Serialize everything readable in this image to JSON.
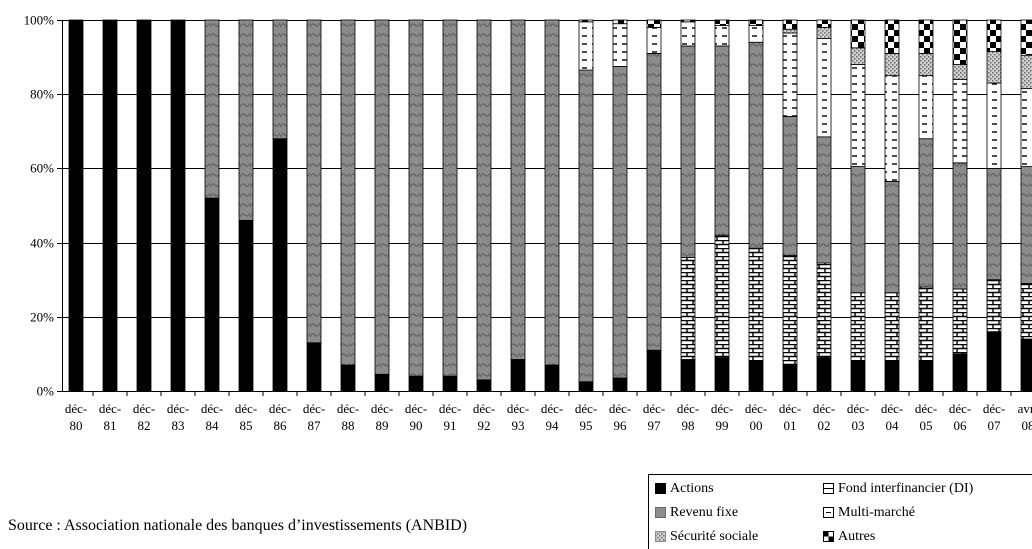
{
  "chart_data": {
    "type": "bar",
    "stacked": true,
    "percent": true,
    "categories": [
      [
        "déc-",
        "80"
      ],
      [
        "déc-",
        "81"
      ],
      [
        "déc-",
        "82"
      ],
      [
        "déc-",
        "83"
      ],
      [
        "déc-",
        "84"
      ],
      [
        "déc-",
        "85"
      ],
      [
        "déc-",
        "86"
      ],
      [
        "déc-",
        "87"
      ],
      [
        "déc-",
        "88"
      ],
      [
        "déc-",
        "89"
      ],
      [
        "déc-",
        "90"
      ],
      [
        "déc-",
        "91"
      ],
      [
        "déc-",
        "92"
      ],
      [
        "déc-",
        "93"
      ],
      [
        "déc-",
        "94"
      ],
      [
        "déc-",
        "95"
      ],
      [
        "déc-",
        "96"
      ],
      [
        "déc-",
        "97"
      ],
      [
        "déc-",
        "98"
      ],
      [
        "déc-",
        "99"
      ],
      [
        "déc-",
        "00"
      ],
      [
        "déc-",
        "01"
      ],
      [
        "déc-",
        "02"
      ],
      [
        "déc-",
        "03"
      ],
      [
        "déc-",
        "04"
      ],
      [
        "déc-",
        "05"
      ],
      [
        "déc-",
        "06"
      ],
      [
        "déc-",
        "07"
      ],
      [
        "avr-",
        "08"
      ]
    ],
    "series": [
      {
        "name": "Actions",
        "pattern": "solid-black",
        "values": [
          100,
          100,
          100,
          100,
          52,
          46,
          68,
          13,
          7,
          4.5,
          4,
          4,
          3,
          8.5,
          7,
          2.5,
          3.5,
          11,
          8.5,
          9,
          8,
          7,
          9,
          8,
          8,
          8,
          10,
          16,
          14
        ]
      },
      {
        "name": "Fond interfinancier (DI)",
        "pattern": "bricks",
        "values": [
          0,
          0,
          0,
          0,
          0,
          0,
          0,
          0,
          0,
          0,
          0,
          0,
          0,
          0,
          0,
          0,
          0,
          0,
          27.5,
          33,
          30.5,
          29.5,
          25.5,
          18.5,
          18.5,
          20,
          17.5,
          14,
          15
        ]
      },
      {
        "name": "Revenu fixe",
        "pattern": "gray-wave",
        "values": [
          0,
          0,
          0,
          0,
          48,
          54,
          32,
          87,
          93,
          95.5,
          96,
          96,
          97,
          91.5,
          93,
          84,
          84,
          80,
          57,
          51,
          55.5,
          37.5,
          34,
          34,
          30,
          40,
          34,
          30,
          31.5
        ]
      },
      {
        "name": "Multi-marché",
        "pattern": "dashes",
        "values": [
          0,
          0,
          0,
          0,
          0,
          0,
          0,
          0,
          0,
          0,
          0,
          0,
          0,
          0,
          0,
          13,
          11.5,
          7,
          6.5,
          5.5,
          4.5,
          22.5,
          26.5,
          27.5,
          28.5,
          17,
          22.5,
          23,
          21
        ]
      },
      {
        "name": "Sécurité sociale",
        "pattern": "dotted",
        "values": [
          0,
          0,
          0,
          0,
          0,
          0,
          0,
          0,
          0,
          0,
          0,
          0,
          0,
          0,
          0,
          0,
          0,
          0,
          0,
          0,
          0,
          1,
          3,
          4.5,
          6,
          6,
          4,
          8.5,
          9
        ]
      },
      {
        "name": "Autres",
        "pattern": "checker",
        "values": [
          0,
          0,
          0,
          0,
          0,
          0,
          0,
          0,
          0,
          0,
          0,
          0,
          0,
          0,
          0,
          0.5,
          1,
          2,
          0.5,
          1.5,
          1.5,
          2.5,
          2,
          7.5,
          9,
          9,
          12,
          8.5,
          9.5
        ]
      }
    ],
    "yticks": [
      "0%",
      "20%",
      "40%",
      "60%",
      "80%",
      "100%"
    ],
    "ylim": [
      0,
      100
    ],
    "grid": true,
    "legend_position": "bottom-right",
    "legend_order": [
      "Actions",
      "Fond interfinancier (DI)",
      "Revenu fixe",
      "Multi-marché",
      "Sécurité sociale",
      "Autres"
    ]
  },
  "source": "Source : Association nationale des banques d’investissements (ANBID)"
}
